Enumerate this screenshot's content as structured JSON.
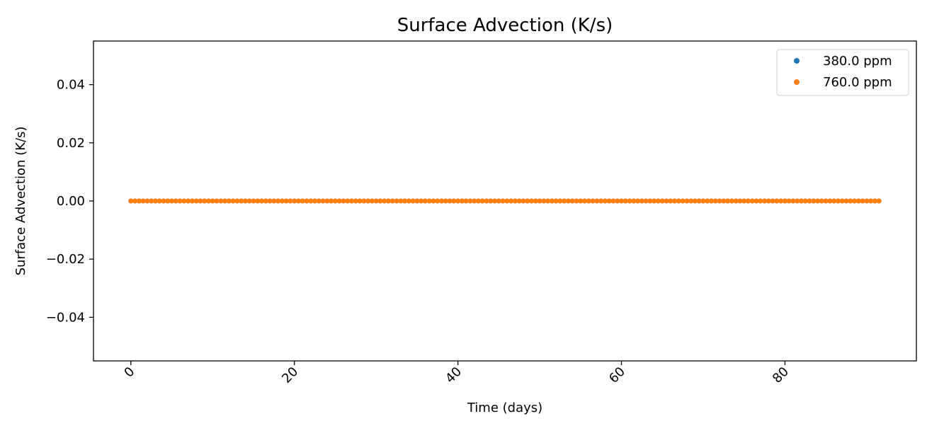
{
  "chart_data": {
    "type": "scatter",
    "title": "Surface Advection (K/s)",
    "xlabel": "Time (days)",
    "ylabel": "Surface Advection (K/s)",
    "xlim": [
      -4.575,
      96.075
    ],
    "ylim": [
      -0.055,
      0.055
    ],
    "x_ticks": [
      0,
      20,
      40,
      60,
      80
    ],
    "y_ticks": [
      0.04,
      0.02,
      0.0,
      -0.02,
      -0.04
    ],
    "x_tick_labels": [
      "0",
      "20",
      "40",
      "60",
      "80"
    ],
    "y_tick_labels": [
      "0.04",
      "0.02",
      "0.00",
      "−0.02",
      "−0.04"
    ],
    "x_tick_rotation": 45,
    "grid": false,
    "legend_position": "top-right",
    "x": {
      "start": 0,
      "stop": 91.5,
      "step": 0.5
    },
    "series": [
      {
        "name": "380.0 ppm",
        "color": "#1f77b4",
        "y_constant": 0.0
      },
      {
        "name": "760.0 ppm",
        "color": "#ff7f0e",
        "y_constant": 0.0
      }
    ]
  }
}
